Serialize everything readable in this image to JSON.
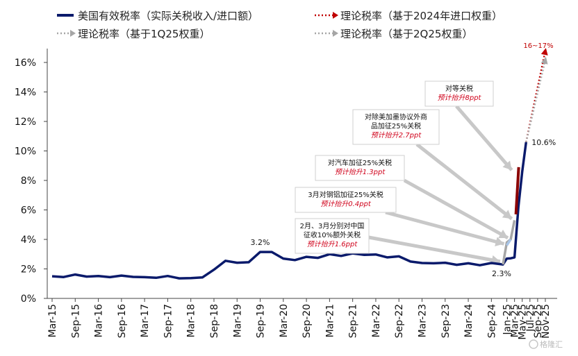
{
  "chart_data": {
    "type": "line",
    "ylim": [
      0,
      16
    ],
    "yticks": [
      "0%",
      "2%",
      "4%",
      "6%",
      "8%",
      "10%",
      "12%",
      "14%",
      "16%"
    ],
    "xticks": [
      "Mar-15",
      "Sep-15",
      "Mar-16",
      "Sep-16",
      "Mar-17",
      "Sep-17",
      "Mar-18",
      "Sep-18",
      "Mar-19",
      "Sep-19",
      "Mar-20",
      "Sep-20",
      "Mar-21",
      "Sep-21",
      "Mar-22",
      "Sep-22",
      "Mar-23",
      "Sep-23",
      "Mar-24",
      "Sep-24",
      "Jan-25",
      "Mar-25",
      "May-25",
      "Jul-25",
      "Sep-25",
      "Nov-25"
    ],
    "legend": [
      {
        "id": "effective",
        "label": "美国有效税率（实际关税收入/进口额）",
        "color": "#0a1a6b",
        "style": "solid"
      },
      {
        "id": "theory_2024",
        "label": "理论税率（基于2024年进口权重）",
        "color": "#c00000",
        "style": "dotted"
      },
      {
        "id": "theory_1q25",
        "label": "理论税率（基于1Q25权重）",
        "color": "#a6a6a6",
        "style": "dotted"
      },
      {
        "id": "theory_2q25",
        "label": "理论税率（基于2Q25权重）",
        "color": "#a6a6a6",
        "style": "dotted"
      }
    ],
    "series": [
      {
        "name": "美国有效税率（实际关税收入/进口额）",
        "color": "#0a1a6b",
        "points": [
          [
            "2015-03",
            1.5
          ],
          [
            "2015-06",
            1.45
          ],
          [
            "2015-09",
            1.62
          ],
          [
            "2015-12",
            1.48
          ],
          [
            "2016-03",
            1.52
          ],
          [
            "2016-06",
            1.44
          ],
          [
            "2016-09",
            1.55
          ],
          [
            "2016-12",
            1.46
          ],
          [
            "2017-03",
            1.44
          ],
          [
            "2017-06",
            1.4
          ],
          [
            "2017-09",
            1.52
          ],
          [
            "2017-12",
            1.36
          ],
          [
            "2018-03",
            1.38
          ],
          [
            "2018-06",
            1.42
          ],
          [
            "2018-09",
            1.95
          ],
          [
            "2018-12",
            2.55
          ],
          [
            "2019-03",
            2.42
          ],
          [
            "2019-06",
            2.45
          ],
          [
            "2019-09",
            3.15
          ],
          [
            "2019-12",
            3.15
          ],
          [
            "2020-03",
            2.7
          ],
          [
            "2020-06",
            2.6
          ],
          [
            "2020-09",
            2.82
          ],
          [
            "2020-12",
            2.75
          ],
          [
            "2021-03",
            3.0
          ],
          [
            "2021-06",
            2.88
          ],
          [
            "2021-09",
            3.05
          ],
          [
            "2021-12",
            2.95
          ],
          [
            "2022-03",
            2.98
          ],
          [
            "2022-06",
            2.78
          ],
          [
            "2022-09",
            2.85
          ],
          [
            "2022-12",
            2.5
          ],
          [
            "2023-03",
            2.4
          ],
          [
            "2023-06",
            2.38
          ],
          [
            "2023-09",
            2.42
          ],
          [
            "2023-12",
            2.28
          ],
          [
            "2024-03",
            2.38
          ],
          [
            "2024-06",
            2.25
          ],
          [
            "2024-09",
            2.4
          ],
          [
            "2024-12",
            2.3
          ],
          [
            "2025-01",
            2.7
          ],
          [
            "2025-02",
            2.72
          ],
          [
            "2025-03",
            2.78
          ],
          [
            "2025-04",
            6.2
          ],
          [
            "2025-05",
            8.6
          ],
          [
            "2025-06",
            10.6
          ]
        ],
        "labels": [
          {
            "at": "2019-09",
            "value": 3.2,
            "text": "3.2%"
          },
          {
            "at": "2024-12",
            "value": 2.3,
            "text": "2.3%"
          },
          {
            "at": "2025-06",
            "value": 10.6,
            "text": "10.6%"
          }
        ]
      },
      {
        "name": "理论税率（基于1Q25权重）",
        "color": "#a6a6a6",
        "style": "solid-segments",
        "points": [
          [
            "2024-12",
            2.3
          ],
          [
            "2025-01",
            3.8
          ],
          [
            "2025-02",
            4.0
          ],
          [
            "2025-03",
            5.3
          ]
        ]
      },
      {
        "name": "理论税率（基于2Q25权重）",
        "color": "#a8c4e6",
        "style": "solid-segments",
        "points": [
          [
            "2025-01",
            3.6
          ],
          [
            "2025-02",
            4.0
          ]
        ]
      },
      {
        "name": "理论税率（基于2024年进口权重）",
        "color": "#8b0000",
        "style": "solid",
        "points": [
          [
            "2025-03",
            5.7
          ],
          [
            "2025-03",
            8.9
          ]
        ]
      },
      {
        "name": "理论税率（基于2024年进口权重）",
        "color": "#c00000",
        "style": "dotted",
        "points": [
          [
            "2025-06",
            10.6
          ],
          [
            "2025-11",
            16.8
          ]
        ]
      },
      {
        "name": "理论税率（基于2Q25权重）",
        "color": "#a6a6a6",
        "style": "dotted",
        "points": [
          [
            "2025-06",
            10.6
          ],
          [
            "2025-11",
            16.2
          ]
        ]
      }
    ],
    "end_label": {
      "text": "16~17%",
      "color": "#c00000"
    },
    "annotations": [
      {
        "title": "对等关税",
        "lines": [],
        "impact": "预计抬升8ppt",
        "target": [
          "2025-03",
          8.7
        ]
      },
      {
        "title": "对除美加墨协议外商",
        "lines": [
          "品加征25%关税"
        ],
        "impact": "预计抬升2.7ppt",
        "target": [
          "2025-03",
          5.4
        ]
      },
      {
        "title": "对汽车加征25%关税",
        "lines": [],
        "impact": "预计抬升1.3ppt",
        "target": [
          "2025-02",
          4.1
        ]
      },
      {
        "title": "3月对钢铝加征25%关税",
        "lines": [],
        "impact": "预计抬升0.4ppt",
        "target": [
          "2025-01",
          3.7
        ]
      },
      {
        "title": "2月、3月分别对中国",
        "lines": [
          "征收10%额外关税"
        ],
        "impact": "预计抬升1.6ppt",
        "target": [
          "2024-12",
          2.5
        ]
      }
    ],
    "grid": false
  },
  "watermark": "格隆汇"
}
